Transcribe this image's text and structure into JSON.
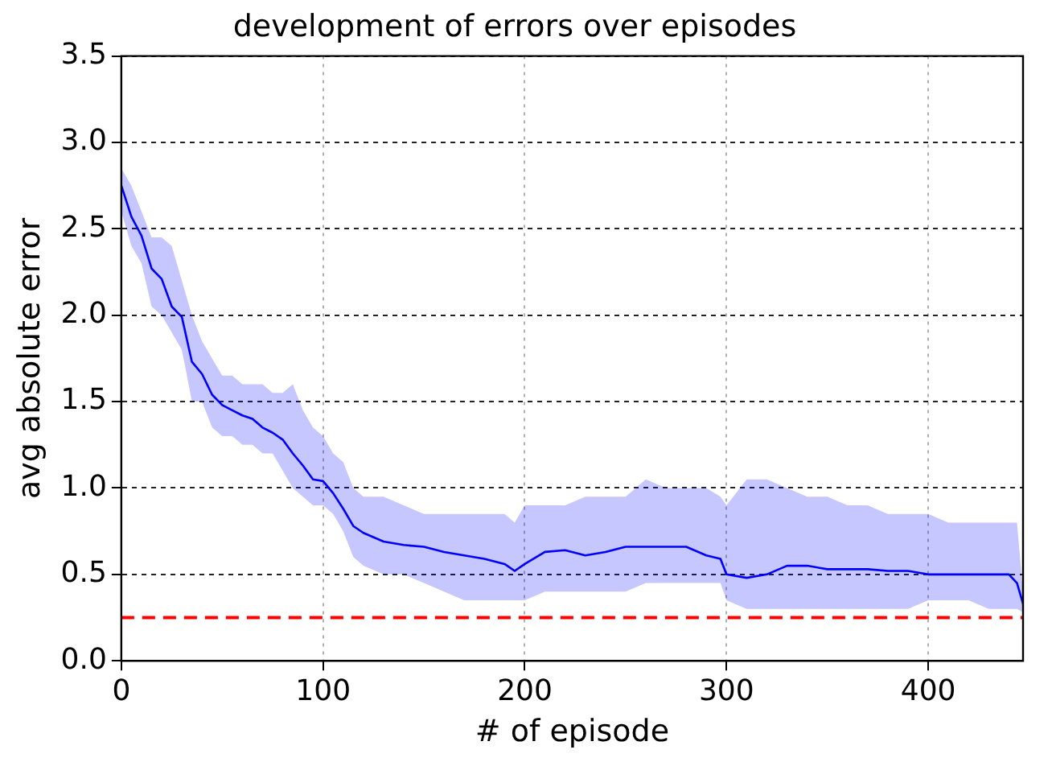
{
  "chart_data": {
    "type": "line",
    "title": "development of errors over episodes",
    "xlabel": "# of episode",
    "ylabel": "avg absolute error",
    "xlim": [
      0,
      447
    ],
    "xticks": [
      0,
      100,
      200,
      300,
      400
    ],
    "ylim": [
      0,
      3.5
    ],
    "yticks": [
      {
        "value": 0,
        "label": "0.0"
      },
      0.5,
      {
        "value": 1,
        "label": "1.0"
      },
      1.5,
      {
        "value": 2,
        "label": "2.0"
      },
      2.5,
      {
        "value": 3,
        "label": "3.0"
      },
      3.5
    ],
    "grid": true,
    "legend": false,
    "marker": "none",
    "line_style": "solid",
    "ref_lines": [
      {
        "axis": "y",
        "value": 0.25,
        "color": "#ff0000",
        "line_style": "dashed"
      }
    ],
    "series": [
      {
        "color": "#0000ff",
        "x": [
          0,
          5,
          10,
          15,
          20,
          25,
          30,
          35,
          40,
          45,
          50,
          55,
          60,
          65,
          70,
          75,
          80,
          85,
          90,
          95,
          100,
          105,
          110,
          115,
          120,
          130,
          140,
          150,
          160,
          170,
          180,
          190,
          195,
          200,
          210,
          220,
          230,
          240,
          250,
          260,
          270,
          280,
          290,
          297,
          300,
          310,
          320,
          330,
          340,
          350,
          360,
          370,
          380,
          390,
          400,
          410,
          420,
          430,
          440,
          444,
          447
        ],
        "values": [
          2.75,
          2.57,
          2.46,
          2.27,
          2.21,
          2.05,
          1.99,
          1.73,
          1.66,
          1.54,
          1.48,
          1.45,
          1.42,
          1.4,
          1.35,
          1.32,
          1.28,
          1.2,
          1.13,
          1.05,
          1.04,
          0.97,
          0.88,
          0.78,
          0.74,
          0.69,
          0.67,
          0.66,
          0.63,
          0.61,
          0.59,
          0.56,
          0.52,
          0.56,
          0.63,
          0.64,
          0.61,
          0.63,
          0.66,
          0.66,
          0.66,
          0.66,
          0.61,
          0.59,
          0.5,
          0.48,
          0.5,
          0.55,
          0.55,
          0.53,
          0.53,
          0.53,
          0.52,
          0.52,
          0.5,
          0.5,
          0.5,
          0.5,
          0.5,
          0.45,
          0.33
        ],
        "upper": [
          2.85,
          2.75,
          2.6,
          2.45,
          2.45,
          2.4,
          2.2,
          2.0,
          1.85,
          1.75,
          1.65,
          1.65,
          1.6,
          1.6,
          1.6,
          1.55,
          1.55,
          1.6,
          1.45,
          1.35,
          1.3,
          1.2,
          1.15,
          1.0,
          0.95,
          0.95,
          0.9,
          0.85,
          0.85,
          0.85,
          0.85,
          0.85,
          0.8,
          0.9,
          0.9,
          0.9,
          0.95,
          0.95,
          0.95,
          1.05,
          1.0,
          1.0,
          1.0,
          0.95,
          0.9,
          1.05,
          1.05,
          1.0,
          0.95,
          0.95,
          0.9,
          0.9,
          0.85,
          0.85,
          0.85,
          0.8,
          0.8,
          0.8,
          0.8,
          0.8,
          0.4
        ],
        "lower": [
          2.6,
          2.4,
          2.3,
          2.05,
          2.0,
          1.9,
          1.8,
          1.5,
          1.5,
          1.35,
          1.3,
          1.3,
          1.25,
          1.25,
          1.2,
          1.2,
          1.1,
          1.0,
          0.95,
          0.9,
          0.9,
          0.85,
          0.75,
          0.6,
          0.55,
          0.5,
          0.5,
          0.45,
          0.4,
          0.35,
          0.35,
          0.35,
          0.35,
          0.35,
          0.4,
          0.4,
          0.4,
          0.4,
          0.4,
          0.45,
          0.45,
          0.45,
          0.45,
          0.45,
          0.35,
          0.3,
          0.3,
          0.3,
          0.3,
          0.3,
          0.3,
          0.3,
          0.3,
          0.3,
          0.35,
          0.35,
          0.35,
          0.3,
          0.3,
          0.3,
          0.28
        ]
      }
    ]
  }
}
